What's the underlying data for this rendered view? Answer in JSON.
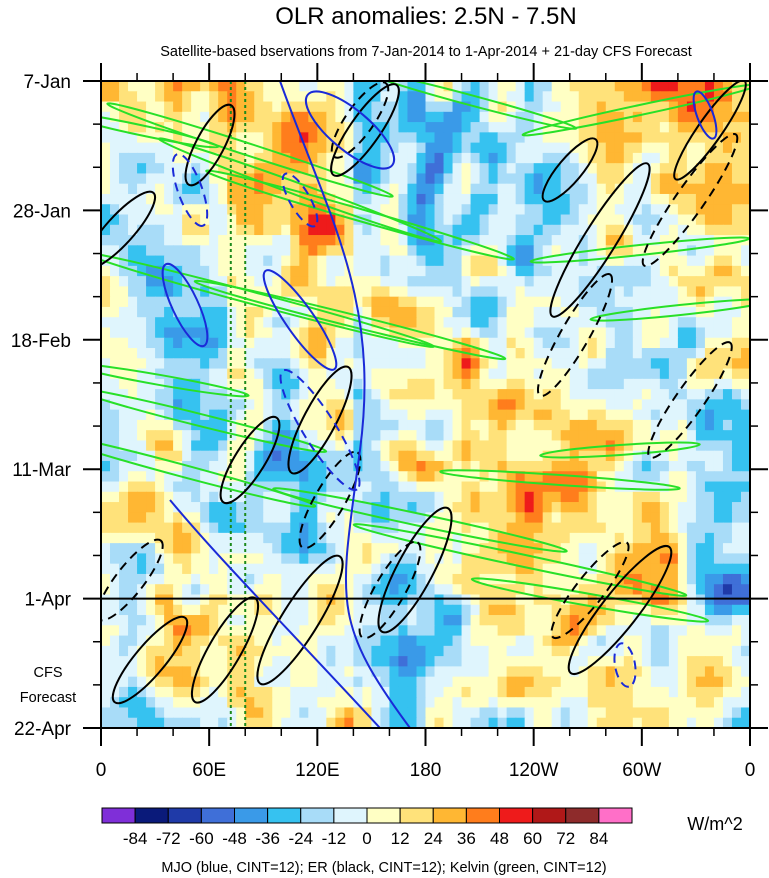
{
  "chart_data": {
    "type": "heatmap",
    "title": "OLR anomalies: 2.5N - 7.5N",
    "subtitle": "Satellite-based bservations from 7-Jan-2014 to 1-Apr-2014 + 21-day CFS Forecast",
    "y_tick_labels": [
      "7-Jan",
      "28-Jan",
      "18-Feb",
      "11-Mar",
      "1-Apr",
      "22-Apr"
    ],
    "y_tick_days": [
      0,
      21,
      42,
      63,
      84,
      105
    ],
    "x_tick_labels": [
      "0",
      "60E",
      "120E",
      "180",
      "120W",
      "60W",
      "0"
    ],
    "x_tick_lon": [
      0,
      60,
      120,
      180,
      240,
      300,
      360
    ],
    "xlim": [
      0,
      360
    ],
    "ylim_days": [
      0,
      105
    ],
    "observation_end_label": "1-Apr",
    "forecast_label_lines": [
      "CFS",
      "Forecast"
    ],
    "colorbar": {
      "levels": [
        -84,
        -72,
        -60,
        -48,
        -36,
        -24,
        -12,
        0,
        12,
        24,
        36,
        48,
        60,
        72,
        84
      ],
      "colors": [
        "#7f2fd8",
        "#0a1a7a",
        "#1f3aa8",
        "#3f6fd8",
        "#3a9ae8",
        "#36c2f0",
        "#a8dcf8",
        "#dff5fd",
        "#ffffc4",
        "#ffe27a",
        "#ffb733",
        "#ff7d1c",
        "#ee1b1b",
        "#b01818",
        "#8e2b2b",
        "#ff6fc8"
      ],
      "units": "W/m^2"
    },
    "contour_legend": "MJO (blue, CINT=12); ER (black, CINT=12); Kelvin (green, CINT=12)",
    "contour_colors": {
      "mjo": "#1a2ad8",
      "er": "#000000",
      "kelvin": "#28e028",
      "reference_lines": "#1c8a1c"
    },
    "reference_longitudes": [
      72,
      80
    ]
  }
}
